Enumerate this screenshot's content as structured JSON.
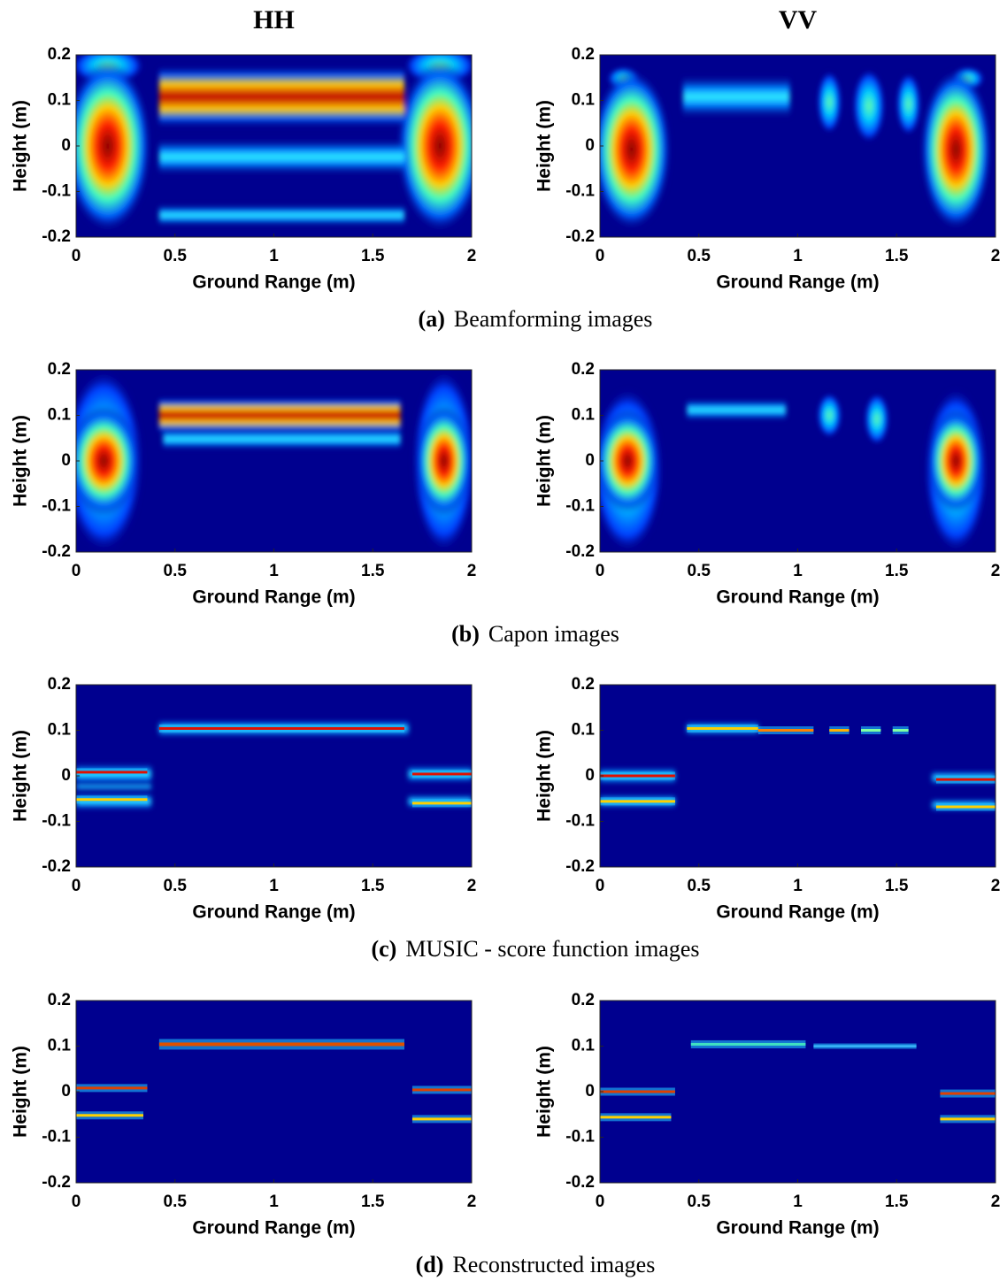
{
  "columns": [
    "HH",
    "VV"
  ],
  "captions": [
    {
      "label": "(a)",
      "text": "Beamforming images"
    },
    {
      "label": "(b)",
      "text": "Capon images"
    },
    {
      "label": "(c)",
      "text": "MUSIC - score function images"
    },
    {
      "label": "(d)",
      "text": "Reconstructed images"
    }
  ],
  "chart_data": [
    {
      "type": "heatmap",
      "xlabel": "Ground Range (m)",
      "ylabel": "Height (m)",
      "xlim": [
        0,
        2
      ],
      "ylim": [
        -0.2,
        0.2
      ],
      "xticks": [
        0,
        0.5,
        1,
        1.5,
        2
      ],
      "yticks": [
        -0.2,
        -0.1,
        0,
        0.1,
        0.2
      ]
    },
    {
      "type": "heatmap",
      "xlabel": "Ground Range (m)",
      "ylabel": "Height (m)",
      "xlim": [
        0,
        2
      ],
      "ylim": [
        -0.2,
        0.2
      ],
      "xticks": [
        0,
        0.5,
        1,
        1.5,
        2
      ],
      "yticks": [
        -0.2,
        -0.1,
        0,
        0.1,
        0.2
      ]
    },
    {
      "type": "heatmap",
      "xlabel": "Ground Range (m)",
      "ylabel": "Height (m)",
      "xlim": [
        0,
        2
      ],
      "ylim": [
        -0.2,
        0.2
      ],
      "xticks": [
        0,
        0.5,
        1,
        1.5,
        2
      ],
      "yticks": [
        -0.2,
        -0.1,
        0,
        0.1,
        0.2
      ]
    },
    {
      "type": "heatmap",
      "xlabel": "Ground Range (m)",
      "ylabel": "Height (m)",
      "xlim": [
        0,
        2
      ],
      "ylim": [
        -0.2,
        0.2
      ],
      "xticks": [
        0,
        0.5,
        1,
        1.5,
        2
      ],
      "yticks": [
        -0.2,
        -0.1,
        0,
        0.1,
        0.2
      ]
    },
    {
      "type": "heatmap",
      "xlabel": "Ground Range (m)",
      "ylabel": "Height (m)",
      "xlim": [
        0,
        2
      ],
      "ylim": [
        -0.2,
        0.2
      ],
      "xticks": [
        0,
        0.5,
        1,
        1.5,
        2
      ],
      "yticks": [
        -0.2,
        -0.1,
        0,
        0.1,
        0.2
      ]
    },
    {
      "type": "heatmap",
      "xlabel": "Ground Range (m)",
      "ylabel": "Height (m)",
      "xlim": [
        0,
        2
      ],
      "ylim": [
        -0.2,
        0.2
      ],
      "xticks": [
        0,
        0.5,
        1,
        1.5,
        2
      ],
      "yticks": [
        -0.2,
        -0.1,
        0,
        0.1,
        0.2
      ]
    },
    {
      "type": "heatmap",
      "xlabel": "Ground Range (m)",
      "ylabel": "Height (m)",
      "xlim": [
        0,
        2
      ],
      "ylim": [
        -0.2,
        0.2
      ],
      "xticks": [
        0,
        0.5,
        1,
        1.5,
        2
      ],
      "yticks": [
        -0.2,
        -0.1,
        0,
        0.1,
        0.2
      ]
    },
    {
      "type": "heatmap",
      "xlabel": "Ground Range (m)",
      "ylabel": "Height (m)",
      "xlim": [
        0,
        2
      ],
      "ylim": [
        -0.2,
        0.2
      ],
      "xticks": [
        0,
        0.5,
        1,
        1.5,
        2
      ],
      "yticks": [
        -0.2,
        -0.1,
        0,
        0.1,
        0.2
      ]
    }
  ]
}
